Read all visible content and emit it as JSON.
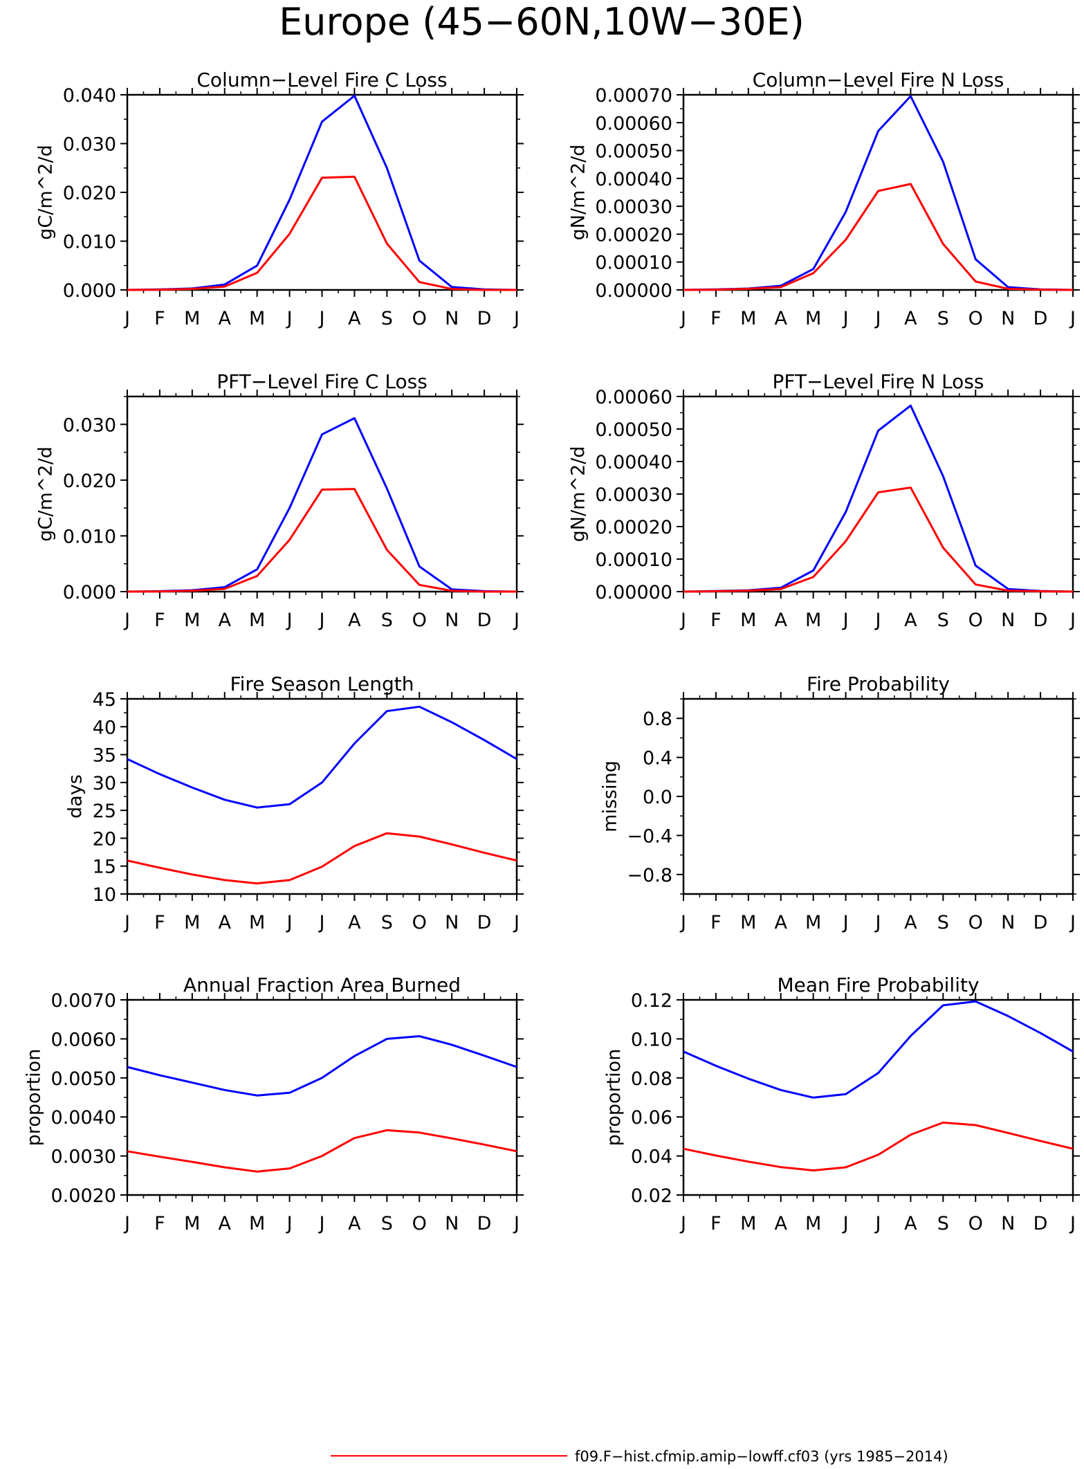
{
  "figure": {
    "title": "Europe (45−60N,10W−30E)",
    "legend": {
      "label": "f09.F−hist.cfmip.amip−lowff.cf03 (yrs 1985−2014)",
      "color": "#ff0000"
    },
    "series_colors": [
      "#0000ff",
      "#ff0000"
    ]
  },
  "chart_data": [
    {
      "type": "line",
      "title": "Column−Level Fire C Loss",
      "ylabel": "gC/m^2/d",
      "categories": [
        "J",
        "F",
        "M",
        "A",
        "M",
        "J",
        "J",
        "A",
        "S",
        "O",
        "N",
        "D",
        "J"
      ],
      "ylim": [
        0,
        0.04
      ],
      "yticks": [
        0,
        0.01,
        0.02,
        0.03,
        0.04
      ],
      "ytick_labels": [
        "0.000",
        "0.010",
        "0.020",
        "0.030",
        "0.040"
      ],
      "series": [
        {
          "color": "#0000ff",
          "values": [
            0,
            0.0001,
            0.0003,
            0.0011,
            0.005,
            0.0185,
            0.0345,
            0.0398,
            0.025,
            0.006,
            0.0006,
            0.0001,
            0
          ]
        },
        {
          "color": "#ff0000",
          "values": [
            0,
            5e-05,
            0.0002,
            0.0007,
            0.0035,
            0.0115,
            0.023,
            0.0232,
            0.0095,
            0.0016,
            0.0002,
            0,
            0
          ]
        }
      ]
    },
    {
      "type": "line",
      "title": "Column−Level Fire N Loss",
      "ylabel": "gN/m^2/d",
      "categories": [
        "J",
        "F",
        "M",
        "A",
        "M",
        "J",
        "J",
        "A",
        "S",
        "O",
        "N",
        "D",
        "J"
      ],
      "ylim": [
        0,
        0.0007
      ],
      "yticks": [
        0,
        0.0001,
        0.0002,
        0.0003,
        0.0004,
        0.0005,
        0.0006,
        0.0007
      ],
      "ytick_labels": [
        "0.00000",
        "0.00010",
        "0.00020",
        "0.00030",
        "0.00040",
        "0.00050",
        "0.00060",
        "0.00070"
      ],
      "series": [
        {
          "color": "#0000ff",
          "values": [
            0,
            2e-06,
            5e-06,
            1.5e-05,
            7.5e-05,
            0.00028,
            0.00057,
            0.000695,
            0.00046,
            0.00011,
            1e-05,
            2e-06,
            0
          ]
        },
        {
          "color": "#ff0000",
          "values": [
            0,
            1e-06,
            4e-06,
            1e-05,
            6e-05,
            0.00018,
            0.000355,
            0.00038,
            0.000165,
            3e-05,
            4e-06,
            1e-06,
            0
          ]
        }
      ]
    },
    {
      "type": "line",
      "title": "PFT−Level Fire C Loss",
      "ylabel": "gC/m^2/d",
      "categories": [
        "J",
        "F",
        "M",
        "A",
        "M",
        "J",
        "J",
        "A",
        "S",
        "O",
        "N",
        "D",
        "J"
      ],
      "ylim": [
        0,
        0.035
      ],
      "yticks": [
        0,
        0.01,
        0.02,
        0.03
      ],
      "ytick_labels": [
        "0.000",
        "0.010",
        "0.020",
        "0.030"
      ],
      "series": [
        {
          "color": "#0000ff",
          "values": [
            0,
            8e-05,
            0.00025,
            0.0008,
            0.004,
            0.015,
            0.0282,
            0.0311,
            0.0185,
            0.0045,
            0.0004,
            8e-05,
            0
          ]
        },
        {
          "color": "#ff0000",
          "values": [
            0,
            4e-05,
            0.00015,
            0.0005,
            0.0028,
            0.0093,
            0.0183,
            0.0184,
            0.0075,
            0.0012,
            0.00015,
            0,
            0
          ]
        }
      ]
    },
    {
      "type": "line",
      "title": "PFT−Level Fire N Loss",
      "ylabel": "gN/m^2/d",
      "categories": [
        "J",
        "F",
        "M",
        "A",
        "M",
        "J",
        "J",
        "A",
        "S",
        "O",
        "N",
        "D",
        "J"
      ],
      "ylim": [
        0,
        0.0006
      ],
      "yticks": [
        0,
        0.0001,
        0.0002,
        0.0003,
        0.0004,
        0.0005,
        0.0006
      ],
      "ytick_labels": [
        "0.00000",
        "0.00010",
        "0.00020",
        "0.00030",
        "0.00040",
        "0.00050",
        "0.00060"
      ],
      "series": [
        {
          "color": "#0000ff",
          "values": [
            0,
            2e-06,
            4e-06,
            1.2e-05,
            6.5e-05,
            0.000245,
            0.000495,
            0.000572,
            0.000355,
            8e-05,
            8e-06,
            2e-06,
            0
          ]
        },
        {
          "color": "#ff0000",
          "values": [
            0,
            1e-06,
            3e-06,
            8e-06,
            4.5e-05,
            0.000155,
            0.000305,
            0.00032,
            0.000135,
            2.2e-05,
            3e-06,
            1e-06,
            0
          ]
        }
      ]
    },
    {
      "type": "line",
      "title": "Fire Season Length",
      "ylabel": "days",
      "categories": [
        "J",
        "F",
        "M",
        "A",
        "M",
        "J",
        "J",
        "A",
        "S",
        "O",
        "N",
        "D",
        "J"
      ],
      "ylim": [
        10,
        45
      ],
      "yticks": [
        10,
        15,
        20,
        25,
        30,
        35,
        40,
        45
      ],
      "ytick_labels": [
        "10",
        "15",
        "20",
        "25",
        "30",
        "35",
        "40",
        "45"
      ],
      "series": [
        {
          "color": "#0000ff",
          "values": [
            34.2,
            31.5,
            29.1,
            26.9,
            25.5,
            26.1,
            30.0,
            37.0,
            42.8,
            43.6,
            40.8,
            37.6,
            34.2
          ]
        },
        {
          "color": "#ff0000",
          "values": [
            16.0,
            14.7,
            13.5,
            12.5,
            11.9,
            12.5,
            14.9,
            18.6,
            20.9,
            20.3,
            18.9,
            17.4,
            16.0
          ]
        }
      ]
    },
    {
      "type": "line",
      "title": "Fire Probability",
      "ylabel": "missing",
      "categories": [
        "J",
        "F",
        "M",
        "A",
        "M",
        "J",
        "J",
        "A",
        "S",
        "O",
        "N",
        "D",
        "J"
      ],
      "ylim": [
        -1,
        1
      ],
      "yticks": [
        -0.8,
        -0.4,
        0,
        0.4,
        0.8
      ],
      "ytick_labels": [
        "−0.8",
        "−0.4",
        "0.0",
        "0.4",
        "0.8"
      ],
      "series": []
    },
    {
      "type": "line",
      "title": "Annual Fraction Area Burned",
      "ylabel": "proportion",
      "categories": [
        "J",
        "F",
        "M",
        "A",
        "M",
        "J",
        "J",
        "A",
        "S",
        "O",
        "N",
        "D",
        "J"
      ],
      "ylim": [
        0.002,
        0.007
      ],
      "yticks": [
        0.002,
        0.003,
        0.004,
        0.005,
        0.006,
        0.007
      ],
      "ytick_labels": [
        "0.0020",
        "0.0030",
        "0.0040",
        "0.0050",
        "0.0060",
        "0.0070"
      ],
      "series": [
        {
          "color": "#0000ff",
          "values": [
            0.00528,
            0.00507,
            0.00488,
            0.00469,
            0.00455,
            0.00462,
            0.005,
            0.00556,
            0.006,
            0.00607,
            0.00585,
            0.00557,
            0.00528
          ]
        },
        {
          "color": "#ff0000",
          "values": [
            0.00312,
            0.00298,
            0.00285,
            0.00271,
            0.0026,
            0.00268,
            0.003,
            0.00346,
            0.00366,
            0.0036,
            0.00345,
            0.00329,
            0.00312
          ]
        }
      ]
    },
    {
      "type": "line",
      "title": "Mean Fire Probability",
      "ylabel": "proportion",
      "categories": [
        "J",
        "F",
        "M",
        "A",
        "M",
        "J",
        "J",
        "A",
        "S",
        "O",
        "N",
        "D",
        "J"
      ],
      "ylim": [
        0.02,
        0.12
      ],
      "yticks": [
        0.02,
        0.04,
        0.06,
        0.08,
        0.1,
        0.12
      ],
      "ytick_labels": [
        "0.02",
        "0.04",
        "0.06",
        "0.08",
        "0.10",
        "0.12"
      ],
      "series": [
        {
          "color": "#0000ff",
          "values": [
            0.0935,
            0.0862,
            0.0796,
            0.0738,
            0.0699,
            0.0717,
            0.0825,
            0.1015,
            0.1172,
            0.1192,
            0.1117,
            0.103,
            0.0935
          ]
        },
        {
          "color": "#ff0000",
          "values": [
            0.0437,
            0.0402,
            0.0371,
            0.0343,
            0.0326,
            0.0342,
            0.0406,
            0.0509,
            0.0571,
            0.0558,
            0.0518,
            0.0477,
            0.0437
          ]
        }
      ]
    }
  ]
}
